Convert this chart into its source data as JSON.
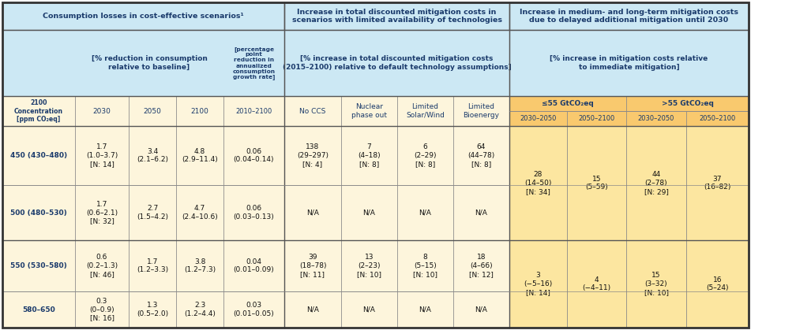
{
  "colors": {
    "light_blue_header": "#cce8f4",
    "orange_header": "#f9c96e",
    "light_yellow_data": "#fdf5dc",
    "orange_data": "#fce6a0",
    "white": "#ffffff",
    "border_light": "#aaaaaa",
    "border_dark": "#444444",
    "text_blue": "#1a3a6b",
    "text_black": "#111111"
  },
  "rows": [
    {
      "conc": "450 (430–480)",
      "y2030": "1.7\n(1.0–3.7)\n[N: 14]",
      "y2050": "3.4\n(2.1–6.2)",
      "y2100": "4.8\n(2.9–11.4)",
      "y2010_2100": "0.06\n(0.04–0.14)",
      "no_ccs": "138\n(29–297)\n[N: 4]",
      "nuclear": "7\n(4–18)\n[N: 8]",
      "solar_wind": "6\n(2–29)\n[N: 8]",
      "bioenergy": "64\n(44–78)\n[N: 8]",
      "le55_2030": "28\n(14–50)\n[N: 34]",
      "le55_2100": "15\n(5–59)",
      "gt55_2030": "44\n(2–78)\n[N: 29]",
      "gt55_2100": "37\n(16–82)"
    },
    {
      "conc": "500 (480–530)",
      "y2030": "1.7\n(0.6–2.1)\n[N: 32]",
      "y2050": "2.7\n(1.5–4.2)",
      "y2100": "4.7\n(2.4–10.6)",
      "y2010_2100": "0.06\n(0.03–0.13)",
      "no_ccs": "N/A",
      "nuclear": "N/A",
      "solar_wind": "N/A",
      "bioenergy": "N/A",
      "le55_2030": "",
      "le55_2100": "",
      "gt55_2030": "",
      "gt55_2100": ""
    },
    {
      "conc": "550 (530–580)",
      "y2030": "0.6\n(0.2–1.3)\n[N: 46]",
      "y2050": "1.7\n(1.2–3.3)",
      "y2100": "3.8\n(1.2–7.3)",
      "y2010_2100": "0.04\n(0.01–0.09)",
      "no_ccs": "39\n(18–78)\n[N: 11]",
      "nuclear": "13\n(2–23)\n[N: 10]",
      "solar_wind": "8\n(5–15)\n[N: 10]",
      "bioenergy": "18\n(4–66)\n[N: 12]",
      "le55_2030": "3\n(−5–16)\n[N: 14]",
      "le55_2100": "4\n(−4–11)",
      "gt55_2030": "15\n(3–32)\n[N: 10]",
      "gt55_2100": "16\n(5–24)"
    },
    {
      "conc": "580–650",
      "y2030": "0.3\n(0–0.9)\n[N: 16]",
      "y2050": "1.3\n(0.5–2.0)",
      "y2100": "2.3\n(1.2–4.4)",
      "y2010_2100": "0.03\n(0.01–0.05)",
      "no_ccs": "N/A",
      "nuclear": "N/A",
      "solar_wind": "N/A",
      "bioenergy": "N/A",
      "le55_2030": "",
      "le55_2100": "",
      "gt55_2030": "",
      "gt55_2100": ""
    }
  ]
}
